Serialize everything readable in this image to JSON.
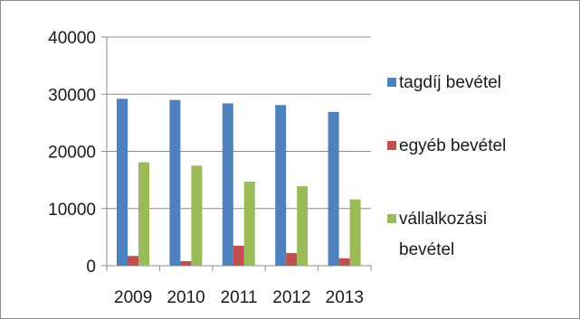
{
  "chart_data": {
    "type": "bar",
    "title": "",
    "xlabel": "",
    "ylabel": "",
    "categories": [
      "2009",
      "2010",
      "2011",
      "2012",
      "2013"
    ],
    "ylim": [
      0,
      40000
    ],
    "yticks": [
      0,
      10000,
      20000,
      30000,
      40000
    ],
    "grid": true,
    "legend_position": "right",
    "series": [
      {
        "name": "tagdíj bevétel",
        "color": "#4f81bd",
        "values": [
          29200,
          29000,
          28400,
          28100,
          26900
        ]
      },
      {
        "name": "egyéb bevétel",
        "color": "#c0504d",
        "values": [
          1700,
          800,
          3500,
          2200,
          1300
        ]
      },
      {
        "name": "vállalkozási bevétel",
        "color": "#9bbb59",
        "values": [
          18100,
          17500,
          14700,
          13900,
          11600
        ]
      }
    ],
    "legend_lines": [
      [
        "tagdíj bevétel"
      ],
      [
        "egyéb bevétel"
      ],
      [
        "vállalkozási",
        "bevétel"
      ]
    ]
  }
}
